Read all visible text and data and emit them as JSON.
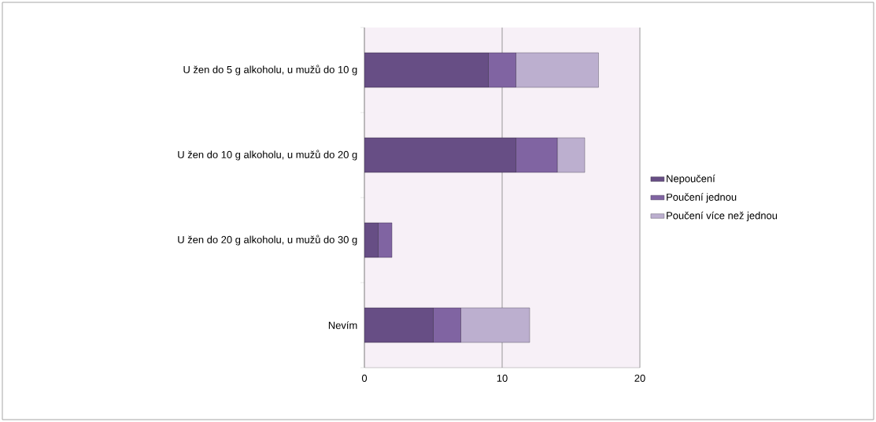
{
  "chart_data": {
    "type": "bar",
    "orientation": "horizontal",
    "stacked": true,
    "categories": [
      "U žen do 5 g alkoholu, u mužů do 10 g",
      "U žen do 10 g alkoholu, u mužů do 20 g",
      "U žen do 20 g alkoholu, u mužů do 30 g",
      "Nevím"
    ],
    "series": [
      {
        "name": "Nepoučení",
        "color": "#674e85",
        "values": [
          9,
          11,
          1,
          5
        ]
      },
      {
        "name": "Poučení jednou",
        "color": "#8064a2",
        "values": [
          2,
          3,
          1,
          2
        ]
      },
      {
        "name": "Poučení více než jednou",
        "color": "#bcafcf",
        "values": [
          6,
          2,
          0,
          5
        ]
      }
    ],
    "xlim": [
      0,
      20
    ],
    "xticks": [
      0,
      10,
      20
    ],
    "grid": "x",
    "legend": "right"
  }
}
